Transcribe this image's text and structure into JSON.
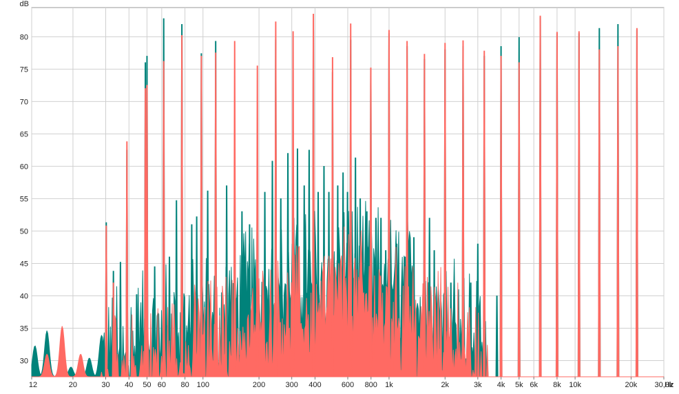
{
  "chart_data": {
    "type": "line",
    "title": "",
    "xlabel": "Hz",
    "ylabel": "dB",
    "x_scale": "log",
    "xlim": [
      12,
      30000
    ],
    "ylim": [
      27.5,
      84.5
    ],
    "grid": true,
    "x_ticks": [
      {
        "v": 12,
        "label": "12"
      },
      {
        "v": 20,
        "label": "20"
      },
      {
        "v": 30,
        "label": "30"
      },
      {
        "v": 40,
        "label": "40"
      },
      {
        "v": 50,
        "label": "50"
      },
      {
        "v": 60,
        "label": "60"
      },
      {
        "v": 80,
        "label": "80"
      },
      {
        "v": 100,
        "label": "100"
      },
      {
        "v": 200,
        "label": "200"
      },
      {
        "v": 300,
        "label": "300"
      },
      {
        "v": 400,
        "label": "400"
      },
      {
        "v": 600,
        "label": "600"
      },
      {
        "v": 800,
        "label": "800"
      },
      {
        "v": 1000,
        "label": "1k"
      },
      {
        "v": 2000,
        "label": "2k"
      },
      {
        "v": 3000,
        "label": "3k"
      },
      {
        "v": 4000,
        "label": "4k"
      },
      {
        "v": 5000,
        "label": "5k"
      },
      {
        "v": 6000,
        "label": "6k"
      },
      {
        "v": 8000,
        "label": "8k"
      },
      {
        "v": 10000,
        "label": "10k"
      },
      {
        "v": 20000,
        "label": "20k"
      },
      {
        "v": 30000,
        "label": "30,0k"
      }
    ],
    "y_ticks": [
      30,
      35,
      40,
      45,
      50,
      55,
      60,
      65,
      70,
      75,
      80
    ],
    "series": [
      {
        "color": "#00827a",
        "peaks": [
          [
            12.5,
            32.3
          ],
          [
            14.5,
            34.6
          ],
          [
            17.5,
            33.5
          ],
          [
            19.5,
            29.0
          ],
          [
            24.5,
            30.4
          ],
          [
            28.5,
            33.9
          ],
          [
            30.2,
            51.3
          ],
          [
            33,
            43.8
          ],
          [
            36,
            45.2
          ],
          [
            39,
            62.5
          ],
          [
            44,
            40.2
          ],
          [
            47,
            35.0
          ],
          [
            49,
            76.0
          ],
          [
            50,
            77.0
          ],
          [
            55,
            44.5
          ],
          [
            61.5,
            82.8
          ],
          [
            66,
            46.0
          ],
          [
            72,
            54.7
          ],
          [
            77,
            81.9
          ],
          [
            87,
            51.0
          ],
          [
            92.5,
            52.2
          ],
          [
            98,
            77.4
          ],
          [
            106,
            56.2
          ],
          [
            117,
            79.3
          ],
          [
            134,
            57.0
          ],
          [
            148,
            65.1
          ],
          [
            162,
            53.0
          ],
          [
            178,
            51.0
          ],
          [
            196,
            59.0
          ],
          [
            215,
            56.0
          ],
          [
            236,
            60.8
          ],
          [
            246,
            79.5
          ],
          [
            262,
            55.0
          ],
          [
            286,
            62.0
          ],
          [
            305,
            60.0
          ],
          [
            322,
            62.7
          ],
          [
            350,
            57.0
          ],
          [
            372,
            62.5
          ],
          [
            392,
            81.0
          ],
          [
            416,
            56.0
          ],
          [
            447,
            60.0
          ],
          [
            475,
            56.0
          ],
          [
            497,
            74.5
          ],
          [
            530,
            57.0
          ],
          [
            566,
            59.0
          ],
          [
            598,
            56.0
          ],
          [
            622,
            79.5
          ],
          [
            660,
            61.3
          ],
          [
            700,
            55.0
          ],
          [
            760,
            53.0
          ],
          [
            798,
            75.0
          ],
          [
            850,
            52.0
          ],
          [
            905,
            52.0
          ],
          [
            960,
            47.0
          ],
          [
            1000,
            80.5
          ],
          [
            1100,
            48.0
          ],
          [
            1220,
            46.0
          ],
          [
            1250,
            78.5
          ],
          [
            1360,
            49.0
          ],
          [
            1550,
            76.5
          ],
          [
            1650,
            52.0
          ],
          [
            1750,
            47.0
          ],
          [
            2000,
            78.0
          ],
          [
            2150,
            42.0
          ],
          [
            2500,
            78.5
          ],
          [
            2750,
            42.0
          ],
          [
            3000,
            48.0
          ],
          [
            3250,
            77.0
          ],
          [
            3800,
            40.0
          ],
          [
            4000,
            78.5
          ],
          [
            5000,
            79.9
          ],
          [
            6500,
            83.0
          ],
          [
            8000,
            80.5
          ],
          [
            10500,
            80.5
          ],
          [
            13500,
            81.3
          ],
          [
            17000,
            81.9
          ],
          [
            21500,
            81.0
          ]
        ]
      },
      {
        "color": "#ff6a63",
        "peaks": [
          [
            14.5,
            31.0
          ],
          [
            17.5,
            35.3
          ],
          [
            22,
            31.0
          ],
          [
            30.2,
            50.8
          ],
          [
            33,
            42.0
          ],
          [
            39,
            63.8
          ],
          [
            49,
            72.0
          ],
          [
            50,
            72.5
          ],
          [
            61.5,
            76.2
          ],
          [
            77,
            80.2
          ],
          [
            98,
            77.0
          ],
          [
            117,
            77.5
          ],
          [
            148,
            79.3
          ],
          [
            196,
            75.5
          ],
          [
            246,
            82.3
          ],
          [
            305,
            80.8
          ],
          [
            392,
            83.5
          ],
          [
            497,
            76.8
          ],
          [
            622,
            82.0
          ],
          [
            798,
            75.2
          ],
          [
            1000,
            81.0
          ],
          [
            1250,
            79.3
          ],
          [
            1550,
            77.3
          ],
          [
            2000,
            79.0
          ],
          [
            2500,
            79.4
          ],
          [
            3250,
            77.8
          ],
          [
            4000,
            77.0
          ],
          [
            5000,
            76.0
          ],
          [
            6500,
            83.2
          ],
          [
            8000,
            80.7
          ],
          [
            10500,
            80.8
          ],
          [
            13500,
            78.0
          ],
          [
            17000,
            78.5
          ],
          [
            21500,
            81.3
          ]
        ]
      }
    ]
  }
}
